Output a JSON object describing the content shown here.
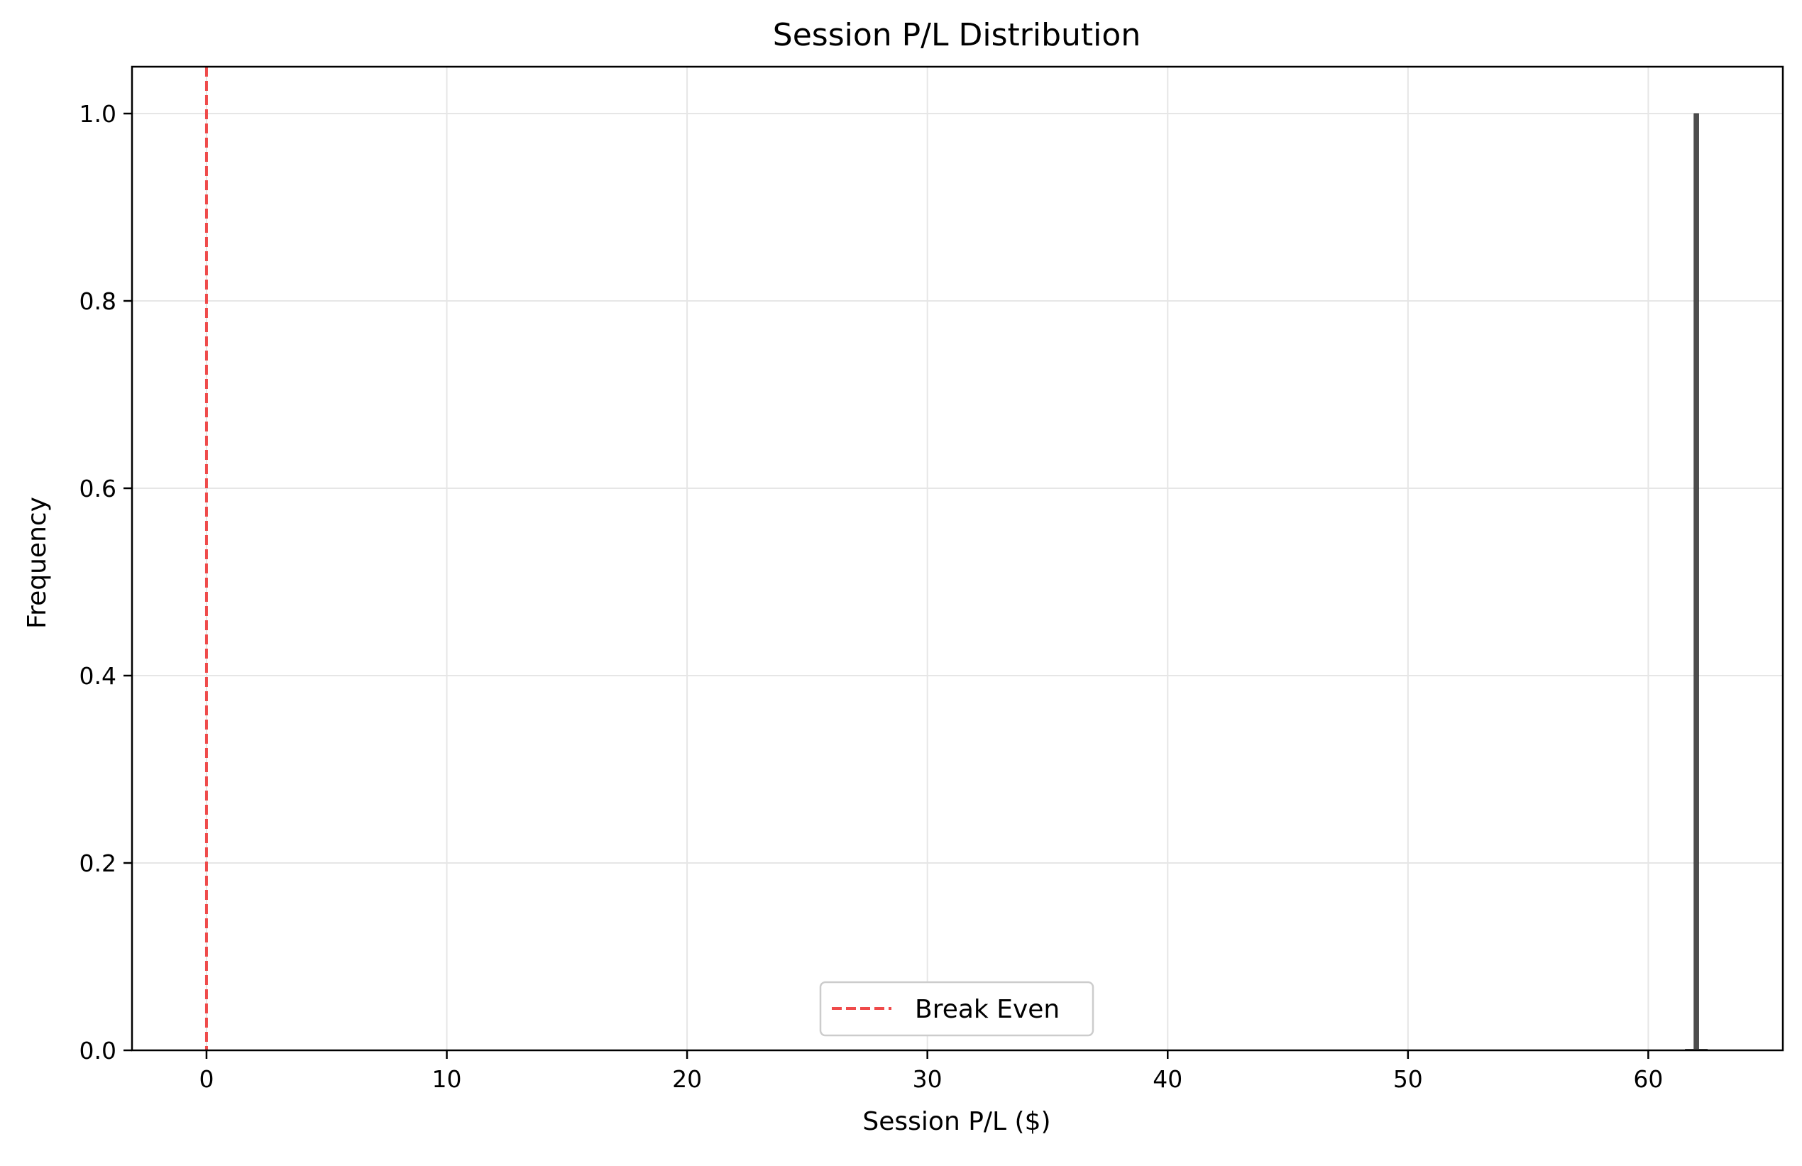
{
  "chart_data": {
    "type": "bar",
    "title": "Session P/L Distribution",
    "xlabel": "Session P/L ($)",
    "ylabel": "Frequency",
    "xlim": [
      -3.1,
      65.6
    ],
    "ylim": [
      0,
      1.05
    ],
    "xticks": [
      0,
      10,
      20,
      30,
      40,
      50,
      60
    ],
    "xtick_labels": [
      "0",
      "10",
      "20",
      "30",
      "40",
      "50",
      "60"
    ],
    "yticks": [
      0,
      0.2,
      0.4,
      0.6,
      0.8,
      1.0
    ],
    "ytick_labels": [
      "0.0",
      "0.2",
      "0.4",
      "0.6",
      "0.8",
      "1.0"
    ],
    "grid": true,
    "series": [
      {
        "bins": [
          {
            "x_start": 61.9,
            "x_end": 62.1,
            "value": 1
          }
        ],
        "color": "#4d4d4d"
      }
    ],
    "reference_lines": [
      {
        "x": 0,
        "label": "Break Even",
        "color": "#ef4a4a",
        "style": "dashed"
      }
    ],
    "legend_placement": "lower center"
  }
}
